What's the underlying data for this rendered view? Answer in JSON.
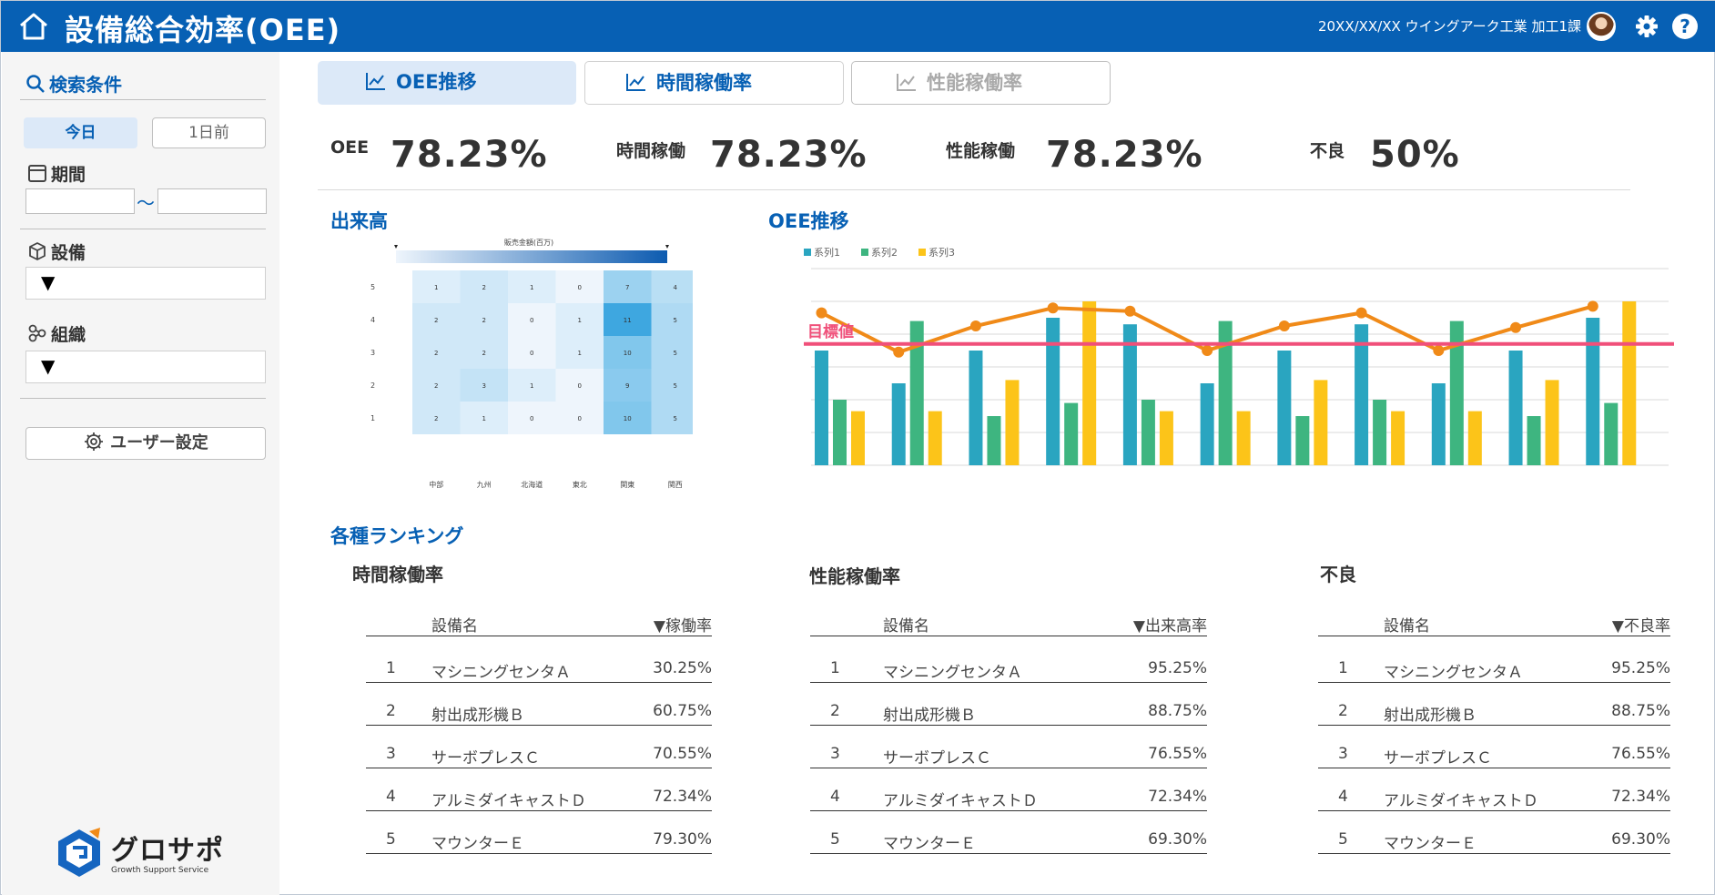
{
  "header": {
    "title": "設備総合効率(OEE)",
    "meta": "20XX/XX/XX  ウイングアーク工業 加工1課"
  },
  "sidebar": {
    "search_title": "検索条件",
    "today": "今日",
    "prev_day": "1日前",
    "period_label": "期間",
    "tilde": "〜",
    "equipment_label": "設備",
    "equipment_value": "▼",
    "org_label": "組織",
    "org_value": "▼",
    "user_settings": "ユーザー設定",
    "logo_name": "グロサポ",
    "logo_sub": "Growth Support Service"
  },
  "tabs": [
    "OEE推移",
    "時間稼働率",
    "性能稼働率"
  ],
  "kpis": [
    {
      "label": "OEE",
      "value": "78.23%"
    },
    {
      "label": "時間稼働",
      "value": "78.23%"
    },
    {
      "label": "性能稼働",
      "value": "78.23%"
    },
    {
      "label": "不良",
      "value": "50%"
    }
  ],
  "sections": {
    "output": "出来高",
    "oee_trend": "OEE推移",
    "ranking": "各種ランキング"
  },
  "heatmap": {
    "legend_title": "販売金額(百万)",
    "columns": [
      "中部",
      "九州",
      "北海道",
      "東北",
      "関東",
      "関西"
    ],
    "rows": [
      {
        "label": "5",
        "values": [
          1,
          2,
          1,
          0,
          7,
          4
        ]
      },
      {
        "label": "4",
        "values": [
          2,
          2,
          0,
          1,
          11,
          5
        ]
      },
      {
        "label": "3",
        "values": [
          2,
          2,
          0,
          1,
          10,
          5
        ]
      },
      {
        "label": "2",
        "values": [
          2,
          3,
          1,
          0,
          9,
          5
        ]
      },
      {
        "label": "1",
        "values": [
          2,
          1,
          0,
          0,
          10,
          5
        ]
      }
    ]
  },
  "chart_data": {
    "type": "bar",
    "series": [
      {
        "name": "系列1",
        "color": "#2aa5c0",
        "values": [
          7,
          5,
          7,
          9,
          8.6,
          5,
          7,
          8.6,
          5,
          7,
          9
        ]
      },
      {
        "name": "系列2",
        "color": "#3eb580",
        "values": [
          4,
          8.8,
          3,
          3.8,
          4,
          8.8,
          3,
          4,
          8.8,
          3,
          3.8
        ]
      },
      {
        "name": "系列3",
        "color": "#fcc419",
        "values": [
          3.3,
          3.3,
          5.2,
          10,
          3.3,
          3.3,
          5.2,
          3.3,
          3.3,
          5.2,
          10
        ]
      }
    ],
    "line": {
      "color": "#f08a18",
      "values": [
        9.3,
        6.9,
        8.5,
        9.6,
        9.4,
        7,
        8.5,
        9.3,
        7,
        8.4,
        9.7
      ]
    },
    "target": {
      "label": "目標値",
      "value": 7.4,
      "color": "#f0507a"
    },
    "ylim": [
      0,
      12
    ]
  },
  "rankings": [
    {
      "title": "時間稼働率",
      "col_name": "設備名",
      "col_value": "▼稼働率",
      "rows": [
        {
          "rank": "1",
          "name": "マシニングセンタＡ",
          "value": "30.25%"
        },
        {
          "rank": "2",
          "name": "射出成形機Ｂ",
          "value": "60.75%"
        },
        {
          "rank": "3",
          "name": "サーボプレスＣ",
          "value": "70.55%"
        },
        {
          "rank": "4",
          "name": "アルミダイキャストＤ",
          "value": "72.34%"
        },
        {
          "rank": "5",
          "name": "マウンターＥ",
          "value": "79.30%"
        }
      ]
    },
    {
      "title": "性能稼働率",
      "col_name": "設備名",
      "col_value": "▼出来高率",
      "rows": [
        {
          "rank": "1",
          "name": "マシニングセンタＡ",
          "value": "95.25%"
        },
        {
          "rank": "2",
          "name": "射出成形機Ｂ",
          "value": "88.75%"
        },
        {
          "rank": "3",
          "name": "サーボプレスＣ",
          "value": "76.55%"
        },
        {
          "rank": "4",
          "name": "アルミダイキャストＤ",
          "value": "72.34%"
        },
        {
          "rank": "5",
          "name": "マウンターＥ",
          "value": "69.30%"
        }
      ]
    },
    {
      "title": "不良",
      "col_name": "設備名",
      "col_value": "▼不良率",
      "rows": [
        {
          "rank": "1",
          "name": "マシニングセンタＡ",
          "value": "95.25%"
        },
        {
          "rank": "2",
          "name": "射出成形機Ｂ",
          "value": "88.75%"
        },
        {
          "rank": "3",
          "name": "サーボプレスＣ",
          "value": "76.55%"
        },
        {
          "rank": "4",
          "name": "アルミダイキャストＤ",
          "value": "72.34%"
        },
        {
          "rank": "5",
          "name": "マウンターＥ",
          "value": "69.30%"
        }
      ]
    }
  ]
}
